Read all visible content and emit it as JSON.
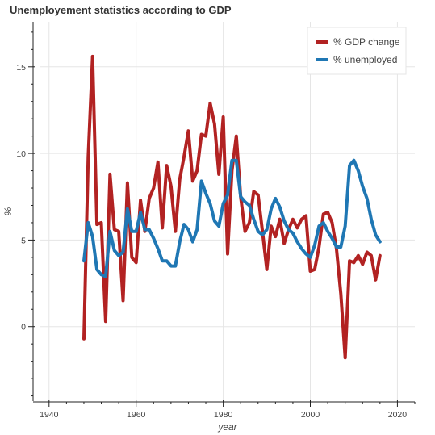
{
  "chart_data": {
    "type": "line",
    "title": "Unemployement statistics according to GDP",
    "xlabel": "year",
    "ylabel": "%",
    "xlim": [
      1938,
      2024
    ],
    "ylim": [
      -4.3,
      17.6
    ],
    "x_ticks": [
      1940,
      1960,
      1980,
      2000,
      2020
    ],
    "y_ticks": [
      0,
      5,
      10,
      15
    ],
    "grid": true,
    "legend_position": "top-right",
    "colors": {
      "gdp": "#b22222",
      "unemployed": "#1f77b4"
    },
    "series": [
      {
        "name": "% GDP change",
        "key": "gdp",
        "x": [
          1948,
          1949,
          1950,
          1951,
          1952,
          1953,
          1954,
          1955,
          1956,
          1957,
          1958,
          1959,
          1960,
          1961,
          1962,
          1963,
          1964,
          1965,
          1966,
          1967,
          1968,
          1969,
          1970,
          1971,
          1972,
          1973,
          1974,
          1975,
          1976,
          1977,
          1978,
          1979,
          1980,
          1981,
          1982,
          1983,
          1984,
          1985,
          1986,
          1987,
          1988,
          1989,
          1990,
          1991,
          1992,
          1993,
          1994,
          1995,
          1996,
          1997,
          1998,
          1999,
          2000,
          2001,
          2002,
          2003,
          2004,
          2005,
          2006,
          2007,
          2008,
          2009,
          2010,
          2011,
          2012,
          2013,
          2014,
          2015,
          2016
        ],
        "values": [
          -0.7,
          9.8,
          15.6,
          5.9,
          6.0,
          0.3,
          8.8,
          5.6,
          5.5,
          1.5,
          8.3,
          4.0,
          3.7,
          7.3,
          5.5,
          7.4,
          8.0,
          9.5,
          5.7,
          9.3,
          8.1,
          5.5,
          8.5,
          9.8,
          11.3,
          8.4,
          9.0,
          11.1,
          11.0,
          12.9,
          11.7,
          8.8,
          12.1,
          4.2,
          9.0,
          11.0,
          7.5,
          5.5,
          6.0,
          7.8,
          7.6,
          5.5,
          3.3,
          5.8,
          5.2,
          6.2,
          4.8,
          5.6,
          6.2,
          5.7,
          6.2,
          6.4,
          3.2,
          3.3,
          4.6,
          6.5,
          6.6,
          6.0,
          4.5,
          1.9,
          -1.8,
          3.8,
          3.7,
          4.1,
          3.6,
          4.3,
          4.1,
          2.7,
          4.1
        ]
      },
      {
        "name": "% unemployed",
        "key": "unemployed",
        "x": [
          1948,
          1949,
          1950,
          1951,
          1952,
          1953,
          1954,
          1955,
          1956,
          1957,
          1958,
          1959,
          1960,
          1961,
          1962,
          1963,
          1964,
          1965,
          1966,
          1967,
          1968,
          1969,
          1970,
          1971,
          1972,
          1973,
          1974,
          1975,
          1976,
          1977,
          1978,
          1979,
          1980,
          1981,
          1982,
          1983,
          1984,
          1985,
          1986,
          1987,
          1988,
          1989,
          1990,
          1991,
          1992,
          1993,
          1994,
          1995,
          1996,
          1997,
          1998,
          1999,
          2000,
          2001,
          2002,
          2003,
          2004,
          2005,
          2006,
          2007,
          2008,
          2009,
          2010,
          2011,
          2012,
          2013,
          2014,
          2015,
          2016
        ],
        "values": [
          3.8,
          6.0,
          5.2,
          3.3,
          3.0,
          2.9,
          5.5,
          4.4,
          4.1,
          4.3,
          6.8,
          5.5,
          5.5,
          6.6,
          5.6,
          5.6,
          5.1,
          4.5,
          3.8,
          3.8,
          3.5,
          3.5,
          4.9,
          5.9,
          5.6,
          4.9,
          5.6,
          8.4,
          7.7,
          7.1,
          6.1,
          5.8,
          7.1,
          7.6,
          9.6,
          9.6,
          7.5,
          7.2,
          7.0,
          6.2,
          5.5,
          5.3,
          5.6,
          6.8,
          7.4,
          6.9,
          6.1,
          5.6,
          5.4,
          4.9,
          4.5,
          4.2,
          4.0,
          4.7,
          5.8,
          6.0,
          5.5,
          5.1,
          4.6,
          4.6,
          5.8,
          9.3,
          9.6,
          9.0,
          8.1,
          7.4,
          6.2,
          5.3,
          4.9
        ]
      }
    ]
  }
}
